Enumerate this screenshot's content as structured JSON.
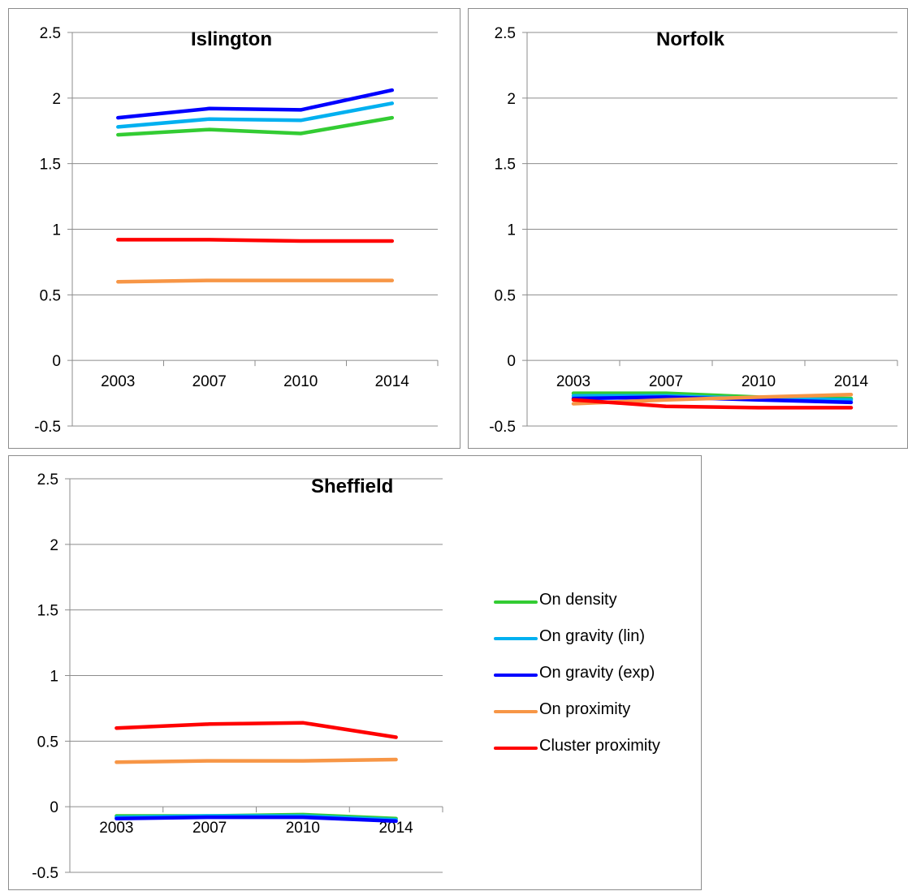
{
  "y_ticks": [
    "2.5",
    "2",
    "1.5",
    "1",
    "0.5",
    "0",
    "-0.5"
  ],
  "legend": [
    {
      "name": "On density",
      "color": "#33cc33"
    },
    {
      "name": "On gravity (lin)",
      "color": "#00b0f0"
    },
    {
      "name": "On gravity (exp)",
      "color": "#0000ff"
    },
    {
      "name": "On proximity",
      "color": "#f79646"
    },
    {
      "name": "Cluster proximity",
      "color": "#ff0000"
    }
  ],
  "chart_data": [
    {
      "type": "line",
      "title": "Islington",
      "categories": [
        "2003",
        "2007",
        "2010",
        "2014"
      ],
      "ylim": [
        -0.5,
        2.5
      ],
      "grid": true,
      "series": [
        {
          "name": "On density",
          "color": "#33cc33",
          "values": [
            1.72,
            1.76,
            1.73,
            1.85
          ]
        },
        {
          "name": "On gravity (lin)",
          "color": "#00b0f0",
          "values": [
            1.78,
            1.84,
            1.83,
            1.96
          ]
        },
        {
          "name": "On gravity (exp)",
          "color": "#0000ff",
          "values": [
            1.85,
            1.92,
            1.91,
            2.06
          ]
        },
        {
          "name": "On proximity",
          "color": "#f79646",
          "values": [
            0.6,
            0.61,
            0.61,
            0.61
          ]
        },
        {
          "name": "Cluster proximity",
          "color": "#ff0000",
          "values": [
            0.92,
            0.92,
            0.91,
            0.91
          ]
        }
      ]
    },
    {
      "type": "line",
      "title": "Norfolk",
      "categories": [
        "2003",
        "2007",
        "2010",
        "2014"
      ],
      "ylim": [
        -0.5,
        2.5
      ],
      "grid": true,
      "series": [
        {
          "name": "On density",
          "color": "#33cc33",
          "values": [
            -0.25,
            -0.25,
            -0.28,
            -0.29
          ]
        },
        {
          "name": "On gravity (lin)",
          "color": "#00b0f0",
          "values": [
            -0.27,
            -0.27,
            -0.29,
            -0.3
          ]
        },
        {
          "name": "On gravity (exp)",
          "color": "#0000ff",
          "values": [
            -0.29,
            -0.28,
            -0.3,
            -0.32
          ]
        },
        {
          "name": "On proximity",
          "color": "#f79646",
          "values": [
            -0.33,
            -0.3,
            -0.28,
            -0.26
          ]
        },
        {
          "name": "Cluster proximity",
          "color": "#ff0000",
          "values": [
            -0.3,
            -0.35,
            -0.36,
            -0.36
          ]
        }
      ]
    },
    {
      "type": "line",
      "title": "Sheffield",
      "categories": [
        "2003",
        "2007",
        "2010",
        "2014"
      ],
      "ylim": [
        -0.5,
        2.5
      ],
      "grid": true,
      "series": [
        {
          "name": "On density",
          "color": "#33cc33",
          "values": [
            -0.07,
            -0.07,
            -0.06,
            -0.09
          ]
        },
        {
          "name": "On gravity (lin)",
          "color": "#00b0f0",
          "values": [
            -0.08,
            -0.07,
            -0.07,
            -0.1
          ]
        },
        {
          "name": "On gravity (exp)",
          "color": "#0000ff",
          "values": [
            -0.09,
            -0.08,
            -0.08,
            -0.11
          ]
        },
        {
          "name": "On proximity",
          "color": "#f79646",
          "values": [
            0.34,
            0.35,
            0.35,
            0.36
          ]
        },
        {
          "name": "Cluster proximity",
          "color": "#ff0000",
          "values": [
            0.6,
            0.63,
            0.64,
            0.53
          ]
        }
      ]
    }
  ]
}
